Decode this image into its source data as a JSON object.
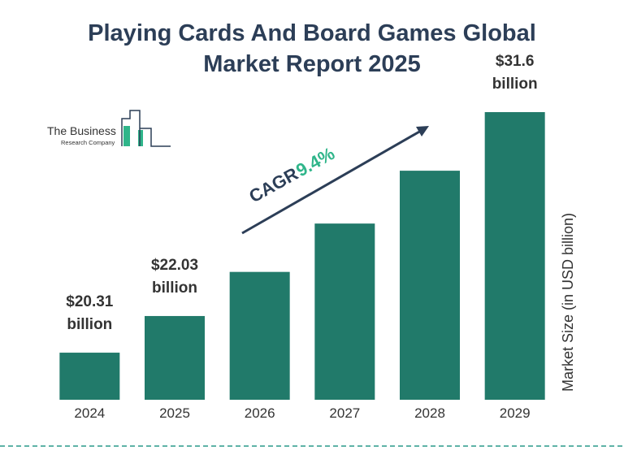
{
  "chart_data": {
    "type": "bar",
    "title": "Playing Cards And Board Games Global Market Report 2025",
    "categories": [
      "2024",
      "2025",
      "2026",
      "2027",
      "2028",
      "2029"
    ],
    "values": [
      20.31,
      22.03,
      24.1,
      26.37,
      28.85,
      31.6
    ],
    "value_labels": [
      "$20.31 billion",
      "$22.03 billion",
      null,
      null,
      null,
      "$31.6 billion"
    ],
    "color": "#217a6a",
    "ylim": [
      18.1,
      31.6
    ],
    "y_label": "Market Size (in USD billion)",
    "annotation": {
      "label": "CAGR",
      "value": "9.4%"
    },
    "logo": {
      "line1": "The Business",
      "line2": "Research Company"
    }
  }
}
